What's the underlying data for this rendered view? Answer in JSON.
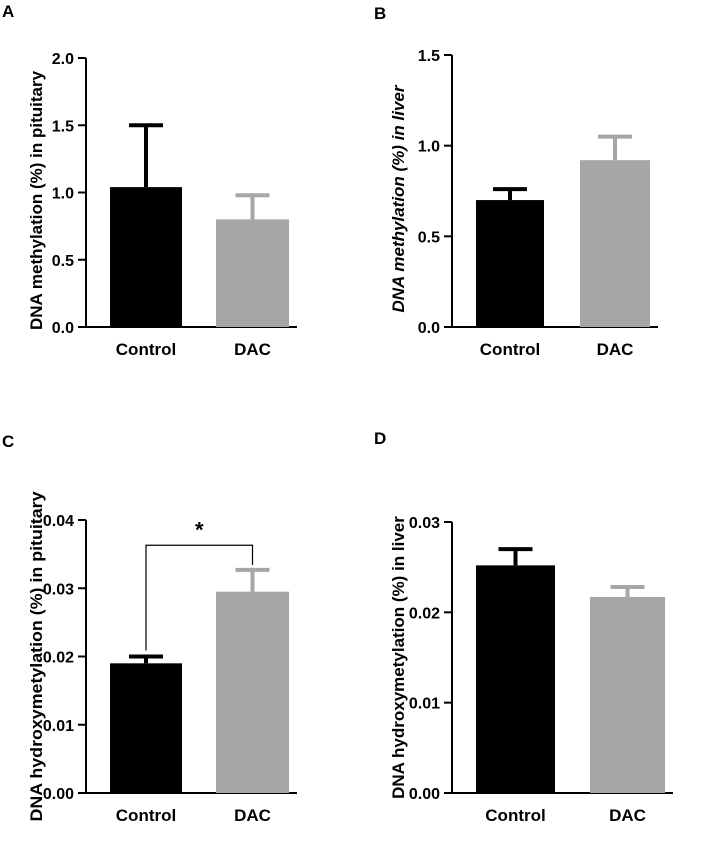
{
  "figure": {
    "type": "multi-panel bar chart"
  },
  "colors": {
    "control": "#000000",
    "dac": "#a6a6a9",
    "axis": "#000000"
  },
  "chart_data": [
    {
      "panel": "A",
      "type": "bar",
      "categories": [
        "Control",
        "DAC"
      ],
      "values": [
        1.04,
        0.8
      ],
      "errors": [
        0.46,
        0.18
      ],
      "ylabel": "DNA methylation (%) in pituitary",
      "ylabel_italic": false,
      "ylim": [
        0,
        2.0
      ],
      "yticks": [
        "0.0",
        "0.5",
        "1.0",
        "1.5",
        "2.0"
      ],
      "significance": null
    },
    {
      "panel": "B",
      "type": "bar",
      "categories": [
        "Control",
        "DAC"
      ],
      "values": [
        0.7,
        0.92
      ],
      "errors": [
        0.06,
        0.13
      ],
      "ylabel": "DNA methylation (%) in liver",
      "ylabel_italic": true,
      "ylim": [
        0,
        1.5
      ],
      "yticks": [
        "0.0",
        "0.5",
        "1.0",
        "1.5"
      ],
      "significance": null
    },
    {
      "panel": "C",
      "type": "bar",
      "categories": [
        "Control",
        "DAC"
      ],
      "values": [
        0.019,
        0.0295
      ],
      "errors": [
        0.001,
        0.0032
      ],
      "ylabel": "DNA hydroxymetylation (%) in pituitary",
      "ylabel_italic": false,
      "ylim": [
        0,
        0.04
      ],
      "yticks": [
        "0.00",
        "0.01",
        "0.02",
        "0.03",
        "0.04"
      ],
      "significance": {
        "label": "*",
        "level": 0.0363,
        "from": 0,
        "to": 1
      }
    },
    {
      "panel": "D",
      "type": "bar",
      "categories": [
        "Control",
        "DAC"
      ],
      "values": [
        0.0252,
        0.0217
      ],
      "errors": [
        0.0018,
        0.0011
      ],
      "ylabel": "DNA hydroxymetylation (%) in liver",
      "ylabel_italic": false,
      "ylim": [
        0,
        0.03
      ],
      "yticks": [
        "0.00",
        "0.01",
        "0.02",
        "0.03"
      ],
      "significance": null
    }
  ]
}
